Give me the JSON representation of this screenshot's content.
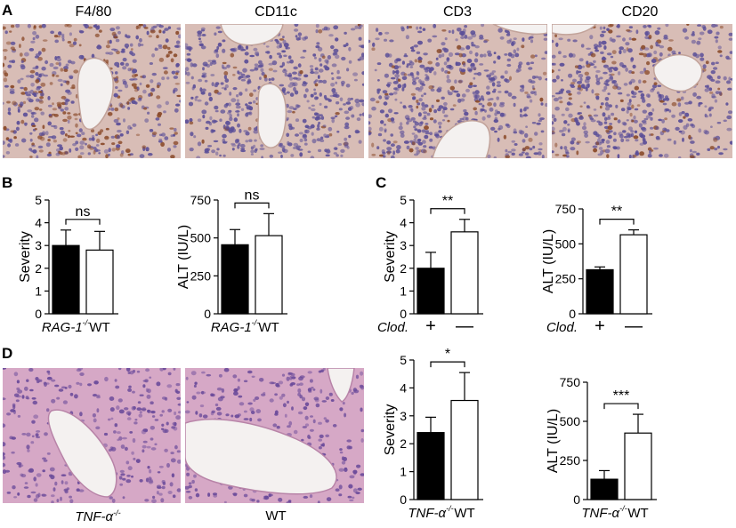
{
  "panels": {
    "A": "A",
    "B": "B",
    "C": "C",
    "D": "D"
  },
  "panelA": {
    "stains": [
      "F4/80",
      "CD11c",
      "CD3",
      "CD20"
    ]
  },
  "panelD": {
    "image_labels": {
      "left_prefix": "TNF-α",
      "left_sup": "-/-",
      "right": "WT"
    }
  },
  "colors": {
    "ihc_bg": "#d8bdb6",
    "ihc_nuclei": "#5b4f98",
    "ihc_brown": "#8a4a2a",
    "he_bg": "#d6a8c6",
    "he_nuclei": "#6a4a9a",
    "bar_black": "#000000",
    "bar_white": "#ffffff"
  },
  "chart_data": [
    {
      "id": "B-severity",
      "type": "bar",
      "categories": [
        "RAG-1-/-",
        "WT"
      ],
      "cat_main": [
        "RAG-1",
        "WT"
      ],
      "cat_sup": [
        "-/-",
        ""
      ],
      "values": [
        3.0,
        2.8
      ],
      "errors": [
        0.68,
        0.82
      ],
      "ylabel": "Severity",
      "ylim": [
        0,
        5
      ],
      "yticks": [
        0,
        1,
        2,
        3,
        4,
        5
      ],
      "significance": "ns"
    },
    {
      "id": "B-alt",
      "type": "bar",
      "categories": [
        "RAG-1-/-",
        "WT"
      ],
      "cat_main": [
        "RAG-1",
        "WT"
      ],
      "cat_sup": [
        "-/-",
        ""
      ],
      "values": [
        455,
        515
      ],
      "errors": [
        100,
        145
      ],
      "ylabel": "ALT (IU/L)",
      "ylim": [
        0,
        750
      ],
      "yticks": [
        0,
        250,
        500,
        750
      ],
      "significance": "ns"
    },
    {
      "id": "C-severity",
      "type": "bar",
      "categories": [
        "+",
        "—"
      ],
      "x_prefix": "Clod.",
      "values": [
        2.0,
        3.6
      ],
      "errors": [
        0.7,
        0.55
      ],
      "ylabel": "Severity",
      "ylim": [
        0,
        5
      ],
      "yticks": [
        0,
        1,
        2,
        3,
        4,
        5
      ],
      "significance": "**"
    },
    {
      "id": "C-alt",
      "type": "bar",
      "categories": [
        "+",
        "—"
      ],
      "x_prefix": "Clod.",
      "values": [
        315,
        565
      ],
      "errors": [
        20,
        35
      ],
      "ylabel": "ALT (IU/L)",
      "ylim": [
        0,
        750
      ],
      "yticks": [
        0,
        250,
        500,
        750
      ],
      "significance": "**"
    },
    {
      "id": "D-severity",
      "type": "bar",
      "categories": [
        "TNF-α-/-",
        "WT"
      ],
      "cat_main": [
        "TNF-α",
        "WT"
      ],
      "cat_sup": [
        "-/-",
        ""
      ],
      "values": [
        2.4,
        3.55
      ],
      "errors": [
        0.55,
        1.0
      ],
      "ylabel": "Severity",
      "ylim": [
        0,
        5
      ],
      "yticks": [
        0,
        1,
        2,
        3,
        4,
        5
      ],
      "significance": "*"
    },
    {
      "id": "D-alt",
      "type": "bar",
      "categories": [
        "TNF-α-/-",
        "WT"
      ],
      "cat_main": [
        "TNF-α",
        "WT"
      ],
      "cat_sup": [
        "-/-",
        ""
      ],
      "values": [
        130,
        425
      ],
      "errors": [
        55,
        120
      ],
      "ylabel": "ALT (IU/L)",
      "ylim": [
        0,
        750
      ],
      "yticks": [
        0,
        250,
        500,
        750
      ],
      "significance": "***"
    }
  ]
}
